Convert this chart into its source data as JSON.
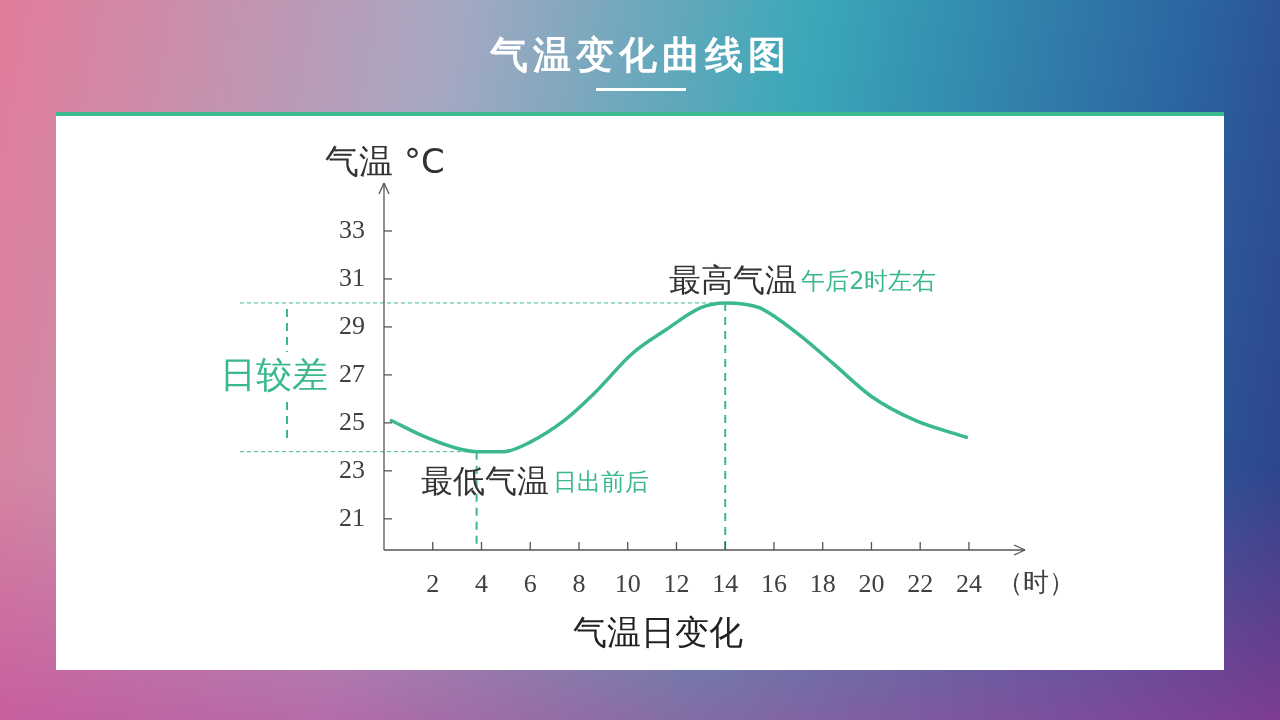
{
  "chart_data": {
    "type": "line",
    "title": "气温变化曲线图",
    "ylabel": "气温 °C",
    "xlabel": "（时）",
    "x": [
      0.3,
      1.5,
      2.8,
      3.8,
      4.9,
      6.0,
      7.4,
      8.6,
      10.2,
      11.6,
      13.0,
      14.0,
      15.4,
      17.0,
      18.4,
      20.0,
      21.8,
      23.9
    ],
    "series": [
      {
        "color": "#3cb98b",
        "values": [
          25.1,
          24.5,
          24.0,
          23.8,
          23.8,
          24.2,
          25.1,
          26.2,
          27.9,
          28.9,
          29.8,
          30.0,
          29.8,
          28.7,
          27.5,
          26.1,
          25.1,
          24.4
        ]
      }
    ],
    "xlim": [
      0,
      26.3
    ],
    "xticks": [
      2,
      4,
      6,
      8,
      10,
      12,
      14,
      16,
      18,
      20,
      22,
      24
    ],
    "ylim": [
      19.7,
      35
    ],
    "yticks": [
      21,
      23,
      25,
      27,
      29,
      31,
      33
    ],
    "marker": "none",
    "ref_lines": [
      {
        "axis": "y",
        "value": 30.0,
        "color": "#3cb98b",
        "line_style": "dashed"
      },
      {
        "axis": "y",
        "value": 23.8,
        "color": "#3cb98b",
        "line_style": "dashed"
      },
      {
        "axis": "x",
        "value": 14.0,
        "color": "#3cb98b",
        "line_style": "dashed"
      },
      {
        "axis": "x",
        "value": 3.8,
        "color": "#3cb98b",
        "line_style": "dashed"
      }
    ],
    "annotations": [
      "日较差",
      "气温日变化",
      {
        "text": "最高气温",
        "x": 14.0,
        "y": 30.0
      },
      "午后2时左右",
      {
        "text": "最低气温",
        "x": 3.8,
        "y": 23.8
      },
      "日出前后"
    ]
  }
}
